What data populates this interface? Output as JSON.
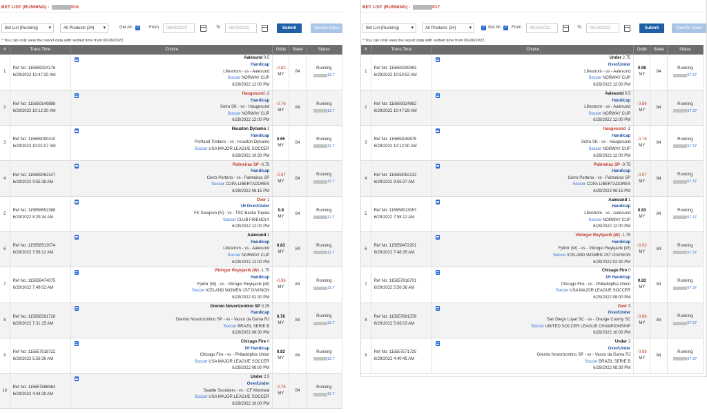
{
  "left": {
    "title_prefix": "BET LIST (RUNNING) - ",
    "title_suffix": "016",
    "bet_list_select": "Bet List (Running)",
    "products_select": "All Products (34)",
    "get_all_label": "Get All",
    "from_label": "From",
    "from_date": "06/26/2022",
    "to_label": "To",
    "to_date": "06/29/2022",
    "submit_label": "Submit",
    "specific_dates_label": "Specific Dates",
    "note": "You can only view the report data with settled time from 06/26/2022.",
    "columns": [
      "#",
      "Trans.Time",
      "Choice",
      "Odds",
      "Stake",
      "Status"
    ],
    "rows": [
      {
        "n": "1",
        "ref": "Ref No: 115659324176",
        "time": "6/29/2022 10:47:20 AM",
        "team": "Aalesund",
        "hdp": "0.5",
        "red": false,
        "bet_type": "Handicap",
        "match": "Lillestrom - vs - Aalesund",
        "sport": "Soccer",
        "league": "NORWAY CUP",
        "kickoff": "6/29/2022 12:00 PM",
        "odds": "-0.82",
        "cur": "MY",
        "stake": "84",
        "status": "Running",
        "status_val": "12.7"
      },
      {
        "n": "2",
        "ref": "Ref No: 115659149888",
        "time": "6/29/2022 10:12:30 AM",
        "team": "Haugesund",
        "hdp": "-2",
        "red": true,
        "bet_type": "Handicap",
        "match": "Sotra SK - vs - Haugesund",
        "sport": "Soccer",
        "league": "NORWAY CUP",
        "kickoff": "6/29/2022 12:00 PM",
        "odds": "-0.76",
        "cur": "MY",
        "stake": "84",
        "status": "Running",
        "status_val": "12.7"
      },
      {
        "n": "3",
        "ref": "Ref No: 115659090410",
        "time": "6/29/2022 10:01:07 AM",
        "team": "Houston Dynamo",
        "hdp": "1",
        "red": false,
        "bet_type": "Handicap",
        "match": "Portland Timbers - vs - Houston Dynamo",
        "sport": "Soccer",
        "league": "USA MAJOR LEAGUE SOCCER",
        "kickoff": "6/29/2022 10:30 PM",
        "odds": "0.65",
        "cur": "MY",
        "stake": "84",
        "status": "Running",
        "status_val": "12.7"
      },
      {
        "n": "4",
        "ref": "Ref No: 115659062147",
        "time": "6/29/2022 9:55:38 AM",
        "team": "Palmeiras SP",
        "hdp": "-0.75",
        "red": true,
        "bet_type": "Handicap",
        "match": "Cerro Porteno - vs - Palmeiras SP",
        "sport": "Soccer",
        "league": "COPA LIBERTADORES",
        "kickoff": "6/29/2022 06:15 PM",
        "odds": "-0.97",
        "cur": "MY",
        "stake": "84",
        "status": "Running",
        "status_val": "12.7"
      },
      {
        "n": "5",
        "ref": "Ref No: 115658652388",
        "time": "6/29/2022 8:29:34 AM",
        "team": "Over",
        "hdp": "1",
        "red": true,
        "bet_type": "1H Over/Under",
        "match": "FK Sarajevo (N) - vs - TSC Backa Topola",
        "sport": "Soccer",
        "league": "CLUB FRIENDLY",
        "kickoff": "6/29/2022 12:00 PM",
        "odds": "0.8",
        "cur": "MY",
        "stake": "84",
        "status": "Running",
        "status_val": "12.7"
      },
      {
        "n": "6",
        "ref": "Ref No: 115658513074",
        "time": "6/29/2022 7:58:12 AM",
        "team": "Aalesund",
        "hdp": "1",
        "red": false,
        "bet_type": "Handicap",
        "match": "Lillestrom - vs - Aalesund",
        "sport": "Soccer",
        "league": "NORWAY CUP",
        "kickoff": "6/29/2022 12:00 PM",
        "odds": "0.83",
        "cur": "MY",
        "stake": "84",
        "status": "Running",
        "status_val": "12.7"
      },
      {
        "n": "7",
        "ref": "Ref No: 115658474075",
        "time": "6/29/2022 7:49:02 AM",
        "team": "Vikingur Reykjavik (W)",
        "hdp": "-1.75",
        "red": true,
        "bet_type": "Handicap",
        "match": "Fjolnir (W) - vs - Vikingur Reykjavik (W)",
        "sport": "Soccer",
        "league": "ICELAND WOMEN 1ST DIVISION",
        "kickoff": "6/29/2022 02:30 PM",
        "odds": "-0.96",
        "cur": "MY",
        "stake": "84",
        "status": "Running",
        "status_val": "12.7"
      },
      {
        "n": "8",
        "ref": "Ref No: 115658391728",
        "time": "6/29/2022 7:31:15 AM",
        "team": "Gremio Novorizontino SP",
        "hdp": "0.25",
        "red": false,
        "bet_type": "Handicap",
        "match": "Gremio Novorizontino SP - vs - Vasco da Gama RJ",
        "sport": "Soccer",
        "league": "BRAZIL SERIE B",
        "kickoff": "6/29/2022 08:30 PM",
        "odds": "0.76",
        "cur": "MY",
        "stake": "84",
        "status": "Running",
        "status_val": "12.7"
      },
      {
        "n": "9",
        "ref": "Ref No: 115657918722",
        "time": "6/29/2022 5:56:36 AM",
        "team": "Chicago Fire",
        "hdp": "0",
        "red": false,
        "bet_type": "1H Handicap",
        "match": "Chicago Fire - vs - Philadelphia Union",
        "sport": "Soccer",
        "league": "USA MAJOR LEAGUE SOCCER",
        "kickoff": "6/29/2022 08:00 PM",
        "odds": "0.83",
        "cur": "MY",
        "stake": "84",
        "status": "Running",
        "status_val": "12.7"
      },
      {
        "n": "10",
        "ref": "Ref No: 115657586964",
        "time": "6/29/2022 4:44:39 AM",
        "team": "Under",
        "hdp": "2.5",
        "red": false,
        "bet_type": "Over/Under",
        "match": "Seattle Sounders - vs - CF Montreal",
        "sport": "Soccer",
        "league": "USA MAJOR LEAGUE SOCCER",
        "kickoff": "6/29/2022 10:00 PM",
        "odds": "-0.75",
        "cur": "MY",
        "stake": "84",
        "status": "Running",
        "status_val": "12.7"
      }
    ]
  },
  "right": {
    "title_prefix": "BET LIST (RUNNING) - ",
    "title_suffix": "017",
    "bet_list_select": "Bet List (Running)",
    "products_select": "All Products (34)",
    "get_all_label": "Get All",
    "from_label": "From",
    "from_date": "06/26/2022",
    "to_label": "To",
    "to_date": "06/29/2022",
    "submit_label": "Submit",
    "specific_dates_label": "Specific Dates",
    "note": "You can only view the report data with settled time from 06/26/2022.",
    "columns": [
      "#",
      "Trans.Time",
      "Choice",
      "Odds",
      "Stake",
      "Status"
    ],
    "rows": [
      {
        "n": "1",
        "ref": "Ref No: 115659339463",
        "time": "6/29/2022 10:50:52 AM",
        "team": "Under",
        "hdp": "2.75",
        "red": false,
        "bet_type": "Over/Under",
        "match": "Lillestrom - vs - Aalesund",
        "sport": "Soccer",
        "league": "NORWAY CUP",
        "kickoff": "6/29/2022 12:00 PM",
        "odds": "0.96",
        "cur": "MY",
        "stake": "84",
        "status": "Running",
        "status_val": "57.37"
      },
      {
        "n": "2",
        "ref": "Ref No: 115659324882",
        "time": "6/29/2022 10:47:28 AM",
        "team": "Aalesund",
        "hdp": "0.5",
        "red": false,
        "bet_type": "Handicap",
        "match": "Lillestrom - vs - Aalesund",
        "sport": "Soccer",
        "league": "NORWAY CUP",
        "kickoff": "6/29/2022 12:00 PM",
        "odds": "-0.86",
        "cur": "MY",
        "stake": "84",
        "status": "Running",
        "status_val": "57.37"
      },
      {
        "n": "3",
        "ref": "Ref No: 115659149875",
        "time": "6/29/2022 10:12:30 AM",
        "team": "Haugesund",
        "hdp": "-2",
        "red": true,
        "bet_type": "Handicap",
        "match": "Sotra SK - vs - Haugesund",
        "sport": "Soccer",
        "league": "NORWAY CUP",
        "kickoff": "6/29/2022 12:00 PM",
        "odds": "-0.76",
        "cur": "MY",
        "stake": "84",
        "status": "Running",
        "status_val": "57.37"
      },
      {
        "n": "4",
        "ref": "Ref No: 115659062132",
        "time": "6/29/2022 9:55:37 AM",
        "team": "Palmeiras SP",
        "hdp": "-0.75",
        "red": true,
        "bet_type": "Handicap",
        "match": "Cerro Porteno - vs - Palmeiras SP",
        "sport": "Soccer",
        "league": "COPA LIBERTADORES",
        "kickoff": "6/29/2022 06:15 PM",
        "odds": "-0.97",
        "cur": "MY",
        "stake": "84",
        "status": "Running",
        "status_val": "57.37"
      },
      {
        "n": "5",
        "ref": "Ref No: 115658513067",
        "time": "6/29/2022 7:58:12 AM",
        "team": "Aalesund",
        "hdp": "1",
        "red": false,
        "bet_type": "Handicap",
        "match": "Lillestrom - vs - Aalesund",
        "sport": "Soccer",
        "league": "NORWAY CUP",
        "kickoff": "6/29/2022 12:00 PM",
        "odds": "0.83",
        "cur": "MY",
        "stake": "84",
        "status": "Running",
        "status_val": "57.37"
      },
      {
        "n": "6",
        "ref": "Ref No: 115658472201",
        "time": "6/29/2022 7:48:35 AM",
        "team": "Vikingur Reykjavik (W)",
        "hdp": "-1.75",
        "red": true,
        "bet_type": "Handicap",
        "match": "Fjolnir (W) - vs - Vikingur Reykjavik (W)",
        "sport": "Soccer",
        "league": "ICELAND WOMEN 1ST DIVISION",
        "kickoff": "6/29/2022 02:30 PM",
        "odds": "-0.93",
        "cur": "MY",
        "stake": "84",
        "status": "Running",
        "status_val": "57.37"
      },
      {
        "n": "7",
        "ref": "Ref No: 115657918701",
        "time": "6/29/2022 5:56:36 AM",
        "team": "Chicago Fire",
        "hdp": "0",
        "red": false,
        "bet_type": "1H Handicap",
        "match": "Chicago Fire - vs - Philadelphia Union",
        "sport": "Soccer",
        "league": "USA MAJOR LEAGUE SOCCER",
        "kickoff": "6/29/2022 08:00 PM",
        "odds": "0.83",
        "cur": "MY",
        "stake": "84",
        "status": "Running",
        "status_val": "57.37"
      },
      {
        "n": "8",
        "ref": "Ref No: 115657681378",
        "time": "6/29/2022 5:06:03 AM",
        "team": "Over",
        "hdp": "3",
        "red": true,
        "bet_type": "Over/Under",
        "match": "San Diego Loyal SC - vs - Orange County SC",
        "sport": "Soccer",
        "league": "UNITED SOCCER LEAGUE CHAMPIONSHIP",
        "kickoff": "6/29/2022 10:00 PM",
        "odds": "-0.88",
        "cur": "MY",
        "stake": "84",
        "status": "Running",
        "status_val": "57.37"
      },
      {
        "n": "9",
        "ref": "Ref No: 115657571725",
        "time": "6/29/2022 4:40:45 AM",
        "team": "Under",
        "hdp": "2",
        "red": false,
        "bet_type": "Over/Under",
        "match": "Gremio Novorizontino SP - vs - Vasco da Gama RJ",
        "sport": "Soccer",
        "league": "BRAZIL SERIE B",
        "kickoff": "6/29/2022 08:30 PM",
        "odds": "-0.98",
        "cur": "MY",
        "stake": "84",
        "status": "Running",
        "status_val": "57.37"
      }
    ]
  }
}
